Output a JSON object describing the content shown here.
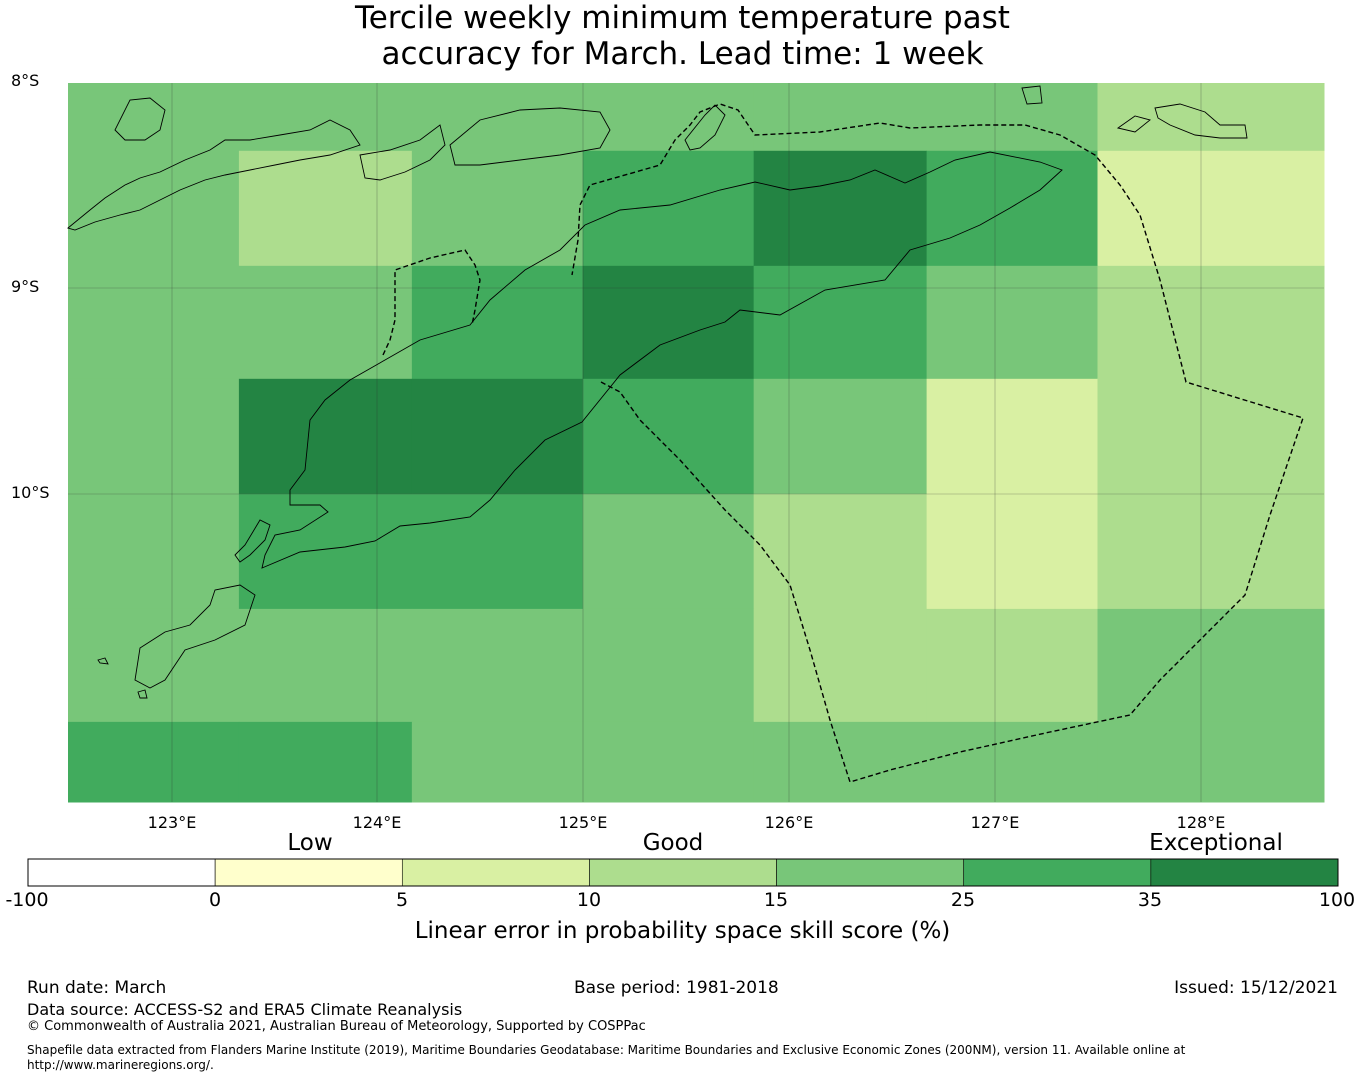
{
  "title": {
    "line1": "Tercile weekly minimum temperature past",
    "line2": "accuracy for March. Lead time: 1 week"
  },
  "map": {
    "lat_labels": [
      "8°S",
      "9°S",
      "10°S"
    ],
    "lon_labels": [
      "123°E",
      "124°E",
      "125°E",
      "126°E",
      "127°E",
      "128°E"
    ],
    "lon_range": [
      122.5,
      128.6
    ],
    "lat_range": [
      -8.0,
      -11.5
    ],
    "grid_cells": {
      "lon_edges": [
        122.5,
        123.33,
        124.17,
        125.0,
        125.83,
        126.67,
        127.5,
        128.6
      ],
      "lat_edges": [
        -8.0,
        -8.33,
        -8.89,
        -9.44,
        -10.0,
        -10.56,
        -11.11,
        -11.5
      ],
      "class_index_rows": [
        [
          4,
          4,
          4,
          4,
          4,
          4,
          3
        ],
        [
          4,
          3,
          4,
          5,
          6,
          5,
          2
        ],
        [
          4,
          4,
          5,
          6,
          5,
          4,
          3
        ],
        [
          4,
          6,
          6,
          5,
          4,
          2,
          3
        ],
        [
          4,
          5,
          5,
          4,
          3,
          2,
          3
        ],
        [
          4,
          4,
          4,
          4,
          3,
          3,
          4
        ],
        [
          5,
          5,
          4,
          4,
          4,
          4,
          4
        ]
      ]
    }
  },
  "colorbar": {
    "category_labels": [
      "Low",
      "Good",
      "Exceptional"
    ],
    "ticks": [
      "-100",
      "0",
      "5",
      "10",
      "15",
      "25",
      "35",
      "100"
    ],
    "colors": [
      "#ffffff",
      "#ffffcc",
      "#d9f0a3",
      "#addd8e",
      "#78c679",
      "#41ab5d",
      "#238443"
    ],
    "label": "Linear error in probability space skill score (%)"
  },
  "footer": {
    "run_date": "Run date: March",
    "base_period": "Base period: 1981-2018",
    "issued": "Issued: 15/12/2021",
    "data_source": "Data source: ACCESS-S2 and ERA5 Climate Reanalysis",
    "copyright": "© Commonwealth of Australia 2021, Australian Bureau of Meteorology, Supported by COSPPac",
    "shapefile_line1": "Shapefile data extracted from Flanders Marine Institute (2019), Maritime Boundaries Geodatabase: Maritime Boundaries and Exclusive Economic Zones (200NM), version 11. Available online at",
    "shapefile_line2": "http://www.marineregions.org/."
  }
}
